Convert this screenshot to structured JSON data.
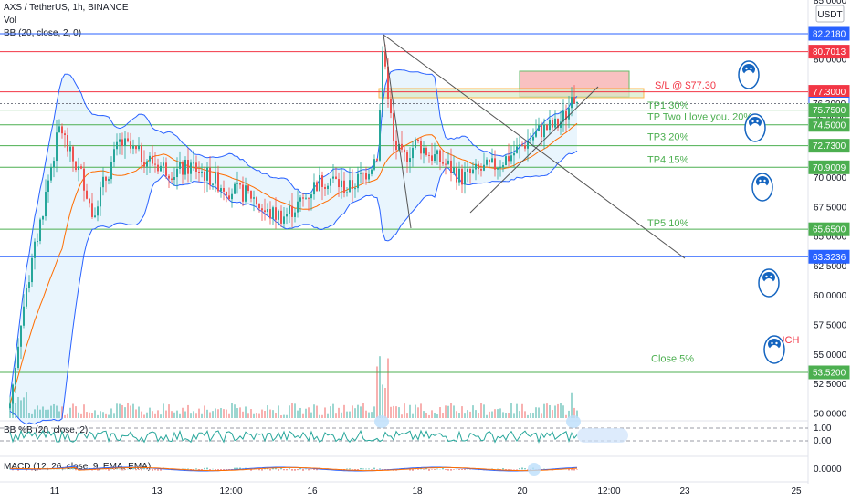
{
  "header": {
    "title": "AXS / TetherUS, 1h, BINANCE",
    "vol": "Vol",
    "bb": "BB (20, close, 2, 0)",
    "bbpct": "BB %B (20, close, 2)",
    "macd": "MACD (12, 26, close, 9, EMA, EMA)"
  },
  "currency_badge": "USDT",
  "colors": {
    "red_level": "#f23645",
    "green_level": "#4caf50",
    "blue_level": "#2962ff",
    "candle_up": "#26a69a",
    "candle_down": "#ef5350",
    "bb_band": "#2962ff",
    "bb_basis": "#ff6d00",
    "bb_fill": "#e3f2fd",
    "sl_box": "#f8b7b7",
    "entry_box": "#d7ecc9"
  },
  "chart_data": {
    "type": "candlestick",
    "symbol": "AXS / TetherUS",
    "interval": "1h",
    "exchange": "BINANCE",
    "y_range": [
      49.5,
      84
    ],
    "price_ticks": [
      "85.0000",
      "80.0000",
      "77.5000",
      "75.0000",
      "72.5000",
      "70.0000",
      "67.5000",
      "65.0000",
      "62.5000",
      "60.0000",
      "57.5000",
      "55.0000",
      "52.5000",
      "50.0000"
    ],
    "x_ticks": [
      "11",
      "13",
      "12:00",
      "16",
      "18",
      "20",
      "12:00",
      "23",
      "25"
    ],
    "levels": [
      {
        "price": 82.218,
        "label": "82.2180",
        "color": "blue"
      },
      {
        "price": 80.7013,
        "label": "80.7013",
        "color": "red"
      },
      {
        "price": 77.3,
        "label": "77.3000",
        "color": "red"
      },
      {
        "price": 76.3,
        "label": "76.3000",
        "color": "gray"
      },
      {
        "price": 75.75,
        "label": "75.7500",
        "color": "green"
      },
      {
        "price": 74.5,
        "label": "74.5000",
        "color": "green"
      },
      {
        "price": 72.73,
        "label": "72.7300",
        "color": "green"
      },
      {
        "price": 70.9009,
        "label": "70.9009",
        "color": "green"
      },
      {
        "price": 65.65,
        "label": "65.6500",
        "color": "green"
      },
      {
        "price": 63.3236,
        "label": "63.3236",
        "color": "blue"
      },
      {
        "price": 53.52,
        "label": "53.5200",
        "color": "green"
      }
    ],
    "annotations": [
      {
        "text": "S/L @ $77.30",
        "price": 77.9,
        "color": "red"
      },
      {
        "text": "TP1 30%",
        "price": 76.2,
        "color": "green"
      },
      {
        "text": "TP Two I love you. 20%",
        "price": 75.2,
        "color": "green"
      },
      {
        "text": "TP3 20%",
        "price": 73.5,
        "color": "green"
      },
      {
        "text": "TP4  15%",
        "price": 71.6,
        "color": "green"
      },
      {
        "text": "TP5  10%",
        "price": 66.2,
        "color": "green"
      },
      {
        "text": "Close 5%",
        "price": 54.7,
        "color": "green"
      },
      {
        "text": "OUCH",
        "price": 56.3,
        "color": "red"
      }
    ],
    "bbpct_ticks": [
      "1.00",
      "0.00"
    ],
    "macd_ticks": [
      "0.0000"
    ]
  }
}
